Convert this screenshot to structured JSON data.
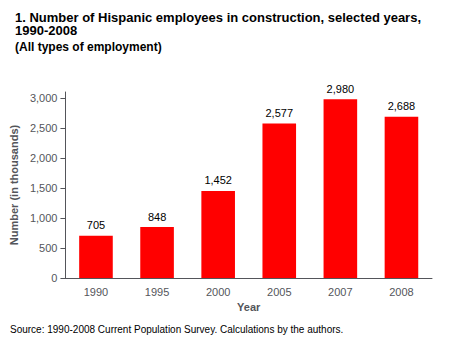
{
  "chart_data": {
    "type": "bar",
    "title": "1. Number of Hispanic employees in construction, selected years, 1990-2008",
    "subtitle": "(All types of employment)",
    "xlabel": "Year",
    "ylabel": "Number (in thousands)",
    "categories": [
      "1990",
      "1995",
      "2000",
      "2005",
      "2007",
      "2008"
    ],
    "values": [
      705,
      848,
      1452,
      2577,
      2980,
      2688
    ],
    "value_labels": [
      "705",
      "848",
      "1,452",
      "2,577",
      "2,980",
      "2,688"
    ],
    "data_labels": true,
    "color": "#ff0000",
    "ylim": [
      0,
      3100
    ],
    "yticks": [
      0,
      500,
      {
        "value": 1000,
        "label": "1,000"
      },
      {
        "value": 1500,
        "label": "1,500"
      },
      {
        "value": 2000,
        "label": "2,000"
      },
      {
        "value": 2500,
        "label": "2,500"
      },
      {
        "value": 3000,
        "label": "3,000"
      }
    ],
    "grid": false,
    "annotations": [
      "Source: 1990-2008 Current Population Survey. Calculations by the authors."
    ]
  }
}
